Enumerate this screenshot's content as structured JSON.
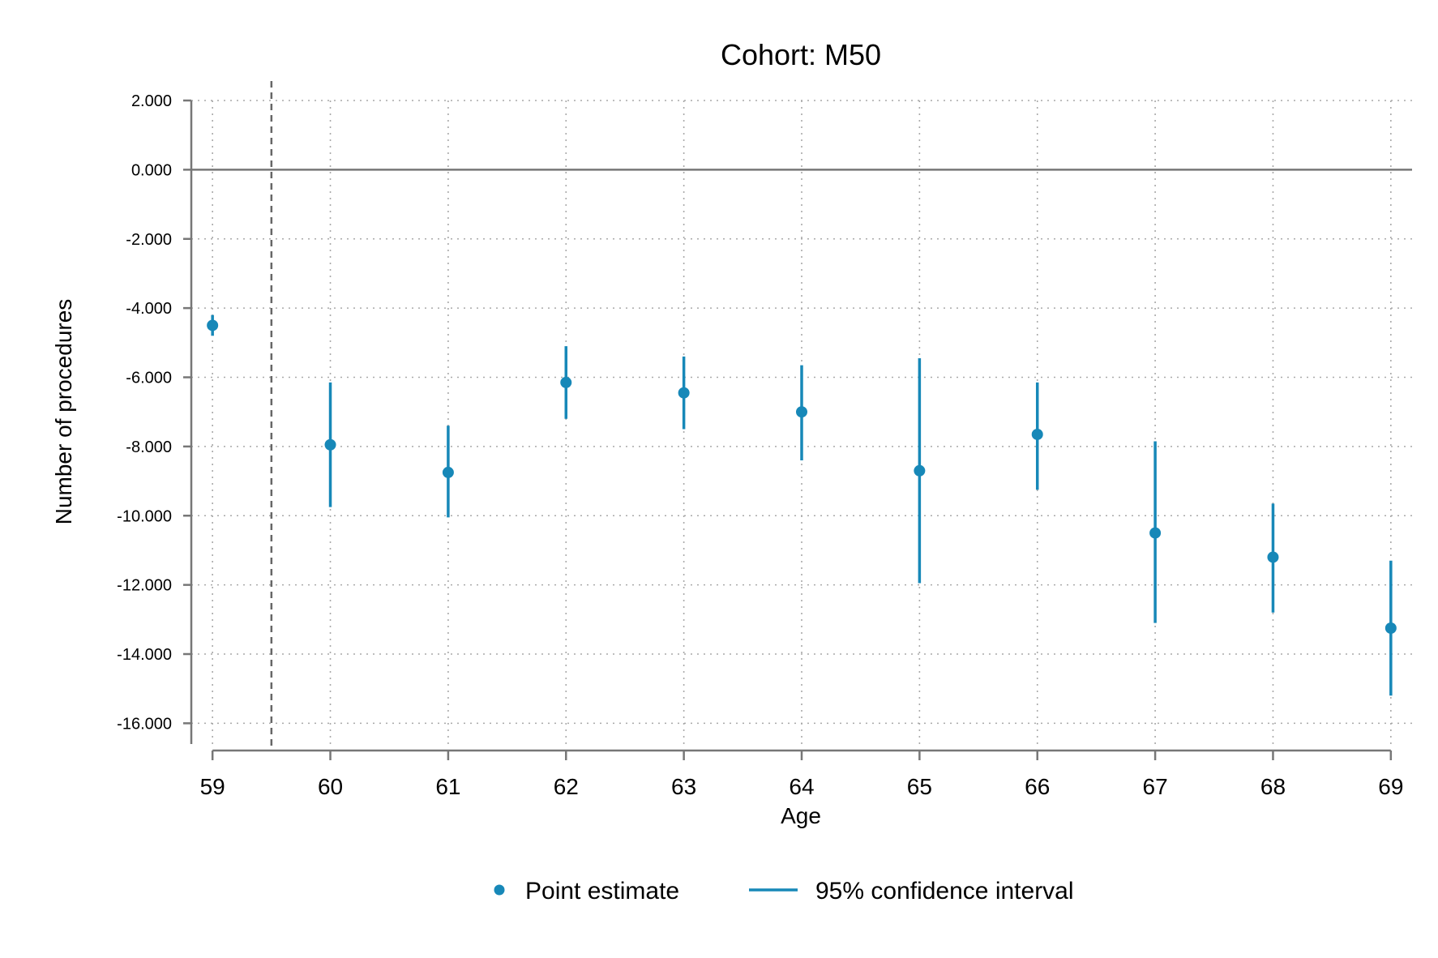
{
  "chart_data": {
    "type": "scatter",
    "title": "Cohort: M50",
    "xlabel": "Age",
    "ylabel": "Number of procedures",
    "x": [
      59,
      60,
      61,
      62,
      63,
      64,
      65,
      66,
      67,
      68,
      69
    ],
    "x_tick_labels": [
      "59",
      "60",
      "61",
      "62",
      "63",
      "64",
      "65",
      "66",
      "67",
      "68",
      "69"
    ],
    "y_ticks": [
      2,
      0,
      -2,
      -4,
      -6,
      -8,
      -10,
      -12,
      -14,
      -16
    ],
    "y_tick_labels": [
      "2.000",
      "0.000",
      "-2.000",
      "-4.000",
      "-6.000",
      "-8.000",
      "-10.000",
      "-12.000",
      "-14.000",
      "-16.000"
    ],
    "xlim": [
      58.82,
      69.18
    ],
    "ylim": [
      -16.6,
      2.0
    ],
    "grid": true,
    "reference_lines": {
      "horizontal_y": 0,
      "vertical_dashed_x": 59.5
    },
    "series": [
      {
        "name": "Point estimate",
        "kind": "point",
        "values": [
          -4.5,
          -7.95,
          -8.75,
          -6.15,
          -6.45,
          -7.0,
          -8.7,
          -7.65,
          -10.5,
          -11.2,
          -13.25
        ]
      },
      {
        "name": "95% confidence interval",
        "kind": "interval",
        "lower": [
          -4.8,
          -9.75,
          -10.05,
          -7.2,
          -7.5,
          -8.4,
          -11.95,
          -9.25,
          -13.1,
          -12.8,
          -15.2
        ],
        "upper": [
          -4.2,
          -6.15,
          -7.4,
          -5.1,
          -5.4,
          -5.65,
          -5.45,
          -6.15,
          -7.85,
          -9.65,
          -11.3
        ]
      }
    ],
    "legend": {
      "placement": "bottom"
    },
    "colors": {
      "series": "#1788b8",
      "axis": "#777777",
      "grid": "#a9a9a9"
    }
  }
}
